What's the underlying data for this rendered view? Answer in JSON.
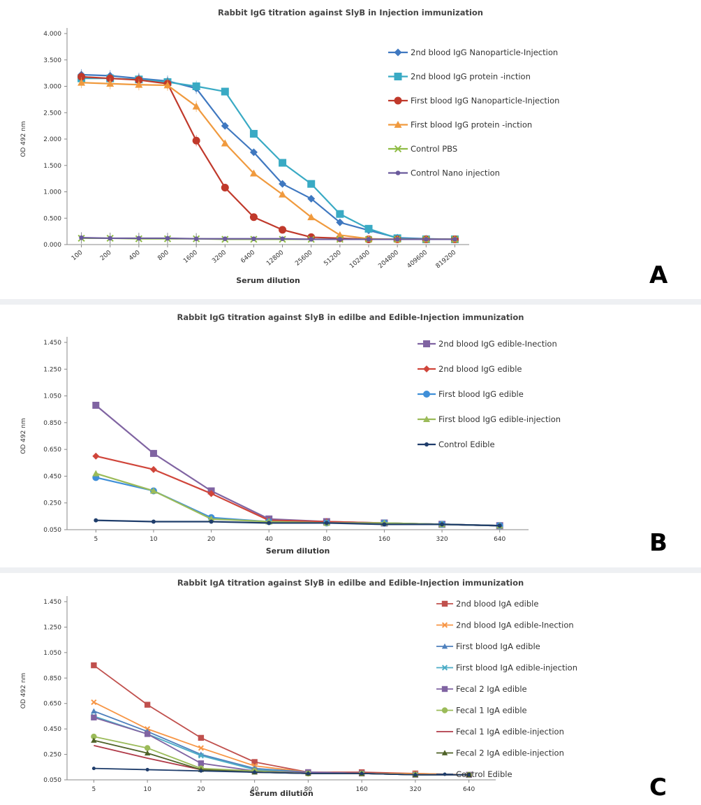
{
  "chart_data": [
    {
      "panel": "A",
      "type": "line",
      "title": "Rabbit IgG titration against SlyB in Injection immunization",
      "xlabel": "Serum dilution",
      "ylabel": "OD 492 nm",
      "categories": [
        "100",
        "200",
        "400",
        "800",
        "1600",
        "3200",
        "6400",
        "12800",
        "25600",
        "51200",
        "102400",
        "204800",
        "409600",
        "819200"
      ],
      "ylim": [
        0,
        4
      ],
      "yticks": [
        "0.000",
        "0.500",
        "1.000",
        "1.500",
        "2.000",
        "2.500",
        "3.000",
        "3.500",
        "4.000"
      ],
      "legend_position": "right",
      "series": [
        {
          "name": "2nd blood IgG Nanoparticle-Injection",
          "color": "#3f78c0",
          "marker": "diamond",
          "values": [
            3.22,
            3.2,
            3.15,
            3.1,
            2.96,
            2.25,
            1.75,
            1.15,
            0.87,
            0.42,
            0.27,
            0.13,
            0.11,
            0.1
          ]
        },
        {
          "name": "2nd blood IgG protein -inction",
          "color": "#39aac4",
          "marker": "square",
          "values": [
            3.15,
            3.15,
            3.13,
            3.08,
            3.0,
            2.9,
            2.1,
            1.55,
            1.15,
            0.58,
            0.3,
            0.12,
            0.1,
            0.1
          ]
        },
        {
          "name": "First blood IgG Nanoparticle-Injection",
          "color": "#c0392b",
          "marker": "circle",
          "values": [
            3.18,
            3.15,
            3.12,
            3.05,
            1.97,
            1.08,
            0.52,
            0.28,
            0.14,
            0.12,
            0.1,
            0.1,
            0.1,
            0.1
          ]
        },
        {
          "name": "First blood IgG protein -inction",
          "color": "#f09a3e",
          "marker": "triangle",
          "values": [
            3.07,
            3.05,
            3.03,
            3.02,
            2.62,
            1.92,
            1.35,
            0.95,
            0.52,
            0.18,
            0.11,
            0.1,
            0.1,
            0.1
          ]
        },
        {
          "name": "Control PBS",
          "color": "#8fbc45",
          "marker": "x",
          "values": [
            0.12,
            0.12,
            0.11,
            0.11,
            0.11,
            0.1,
            0.1,
            0.1,
            0.1,
            0.1,
            0.1,
            0.1,
            0.1,
            0.1
          ]
        },
        {
          "name": "Control Nano injection",
          "color": "#6a5a9c",
          "marker": "dot",
          "values": [
            0.13,
            0.12,
            0.12,
            0.12,
            0.11,
            0.11,
            0.11,
            0.11,
            0.1,
            0.1,
            0.1,
            0.1,
            0.1,
            0.1
          ]
        }
      ]
    },
    {
      "panel": "B",
      "type": "line",
      "title": "Rabbit IgG titration against SlyB in edilbe and Edible-Injection immunization",
      "xlabel": "Serum dilution",
      "ylabel": "OD 492 nm",
      "categories": [
        "5",
        "10",
        "20",
        "40",
        "80",
        "160",
        "320",
        "640"
      ],
      "ylim": [
        0.05,
        1.45
      ],
      "yticks": [
        "0.050",
        "0.250",
        "0.450",
        "0.650",
        "0.850",
        "1.050",
        "1.250",
        "1.450"
      ],
      "legend_position": "right",
      "series": [
        {
          "name": "2nd blood IgG edible-Inection",
          "color": "#8064a2",
          "marker": "square",
          "values": [
            0.98,
            0.62,
            0.34,
            0.13,
            0.11,
            0.1,
            0.09,
            0.08
          ]
        },
        {
          "name": "2nd blood IgG edible",
          "color": "#d0453a",
          "marker": "diamond",
          "values": [
            0.6,
            0.5,
            0.32,
            0.12,
            0.11,
            0.1,
            0.09,
            0.08
          ]
        },
        {
          "name": "First blood IgG edible",
          "color": "#3f8fd8",
          "marker": "circle",
          "values": [
            0.44,
            0.34,
            0.14,
            0.11,
            0.1,
            0.1,
            0.09,
            0.08
          ]
        },
        {
          "name": "First blood IgG edible-injection",
          "color": "#9bbb59",
          "marker": "triangle",
          "values": [
            0.47,
            0.34,
            0.13,
            0.11,
            0.1,
            0.1,
            0.09,
            0.08
          ]
        },
        {
          "name": "Control Edible",
          "color": "#1f3d6b",
          "marker": "dot",
          "values": [
            0.12,
            0.11,
            0.11,
            0.1,
            0.1,
            0.09,
            0.09,
            0.08
          ]
        }
      ]
    },
    {
      "panel": "C",
      "type": "line",
      "title": "Rabbit IgA titration against SlyB in edilbe and Edible-Injection immunization",
      "xlabel": "Serum dilution",
      "ylabel": "OD 492 nm",
      "categories": [
        "5",
        "10",
        "20",
        "40",
        "80",
        "160",
        "320",
        "640"
      ],
      "ylim": [
        0.05,
        1.45
      ],
      "yticks": [
        "0.050",
        "0.250",
        "0.450",
        "0.650",
        "0.850",
        "1.050",
        "1.250",
        "1.450"
      ],
      "legend_position": "right",
      "series": [
        {
          "name": "2nd blood IgA edible",
          "color": "#c0504d",
          "marker": "square",
          "values": [
            0.95,
            0.64,
            0.38,
            0.19,
            0.11,
            0.11,
            0.1,
            0.09
          ]
        },
        {
          "name": "2nd blood IgA edible-Inection",
          "color": "#f79646",
          "marker": "x",
          "values": [
            0.66,
            0.45,
            0.3,
            0.16,
            0.11,
            0.1,
            0.1,
            0.09
          ]
        },
        {
          "name": "First blood IgA edible",
          "color": "#4f81bd",
          "marker": "triangle",
          "values": [
            0.59,
            0.43,
            0.25,
            0.14,
            0.11,
            0.1,
            0.09,
            0.09
          ]
        },
        {
          "name": "First blood IgA edible-injection",
          "color": "#4bacc6",
          "marker": "x",
          "values": [
            0.55,
            0.41,
            0.24,
            0.13,
            0.11,
            0.1,
            0.09,
            0.09
          ]
        },
        {
          "name": "Fecal 2 IgA edible",
          "color": "#8064a2",
          "marker": "square",
          "values": [
            0.54,
            0.41,
            0.18,
            0.12,
            0.11,
            0.1,
            0.09,
            0.09
          ]
        },
        {
          "name": "Fecal 1 IgA edible",
          "color": "#9bbb59",
          "marker": "circle",
          "values": [
            0.39,
            0.3,
            0.14,
            0.12,
            0.1,
            0.1,
            0.09,
            0.09
          ]
        },
        {
          "name": "Fecal 1 IgA edible-injection",
          "color": "#b03a48",
          "marker": "none",
          "values": [
            0.32,
            0.22,
            0.13,
            0.11,
            0.1,
            0.1,
            0.09,
            0.09
          ]
        },
        {
          "name": "Fecal 2 IgA edible-injection",
          "color": "#4f6228",
          "marker": "triangle",
          "values": [
            0.36,
            0.26,
            0.13,
            0.11,
            0.1,
            0.1,
            0.09,
            0.09
          ]
        },
        {
          "name": "Control Edible",
          "color": "#1f3d6b",
          "marker": "dot",
          "values": [
            0.14,
            0.13,
            0.12,
            0.11,
            0.1,
            0.1,
            0.09,
            0.09
          ]
        }
      ]
    }
  ],
  "panel_letters": [
    "A",
    "B",
    "C"
  ]
}
